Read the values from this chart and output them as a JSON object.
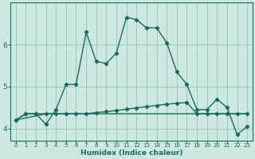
{
  "xlabel": "Humidex (Indice chaleur)",
  "bg_color": "#cce8e0",
  "grid_color": "#99ccbb",
  "line_color": "#1a6b5a",
  "xlim": [
    -0.5,
    23.5
  ],
  "ylim": [
    3.7,
    7.0
  ],
  "yticks": [
    4,
    5,
    6
  ],
  "xticks": [
    0,
    1,
    2,
    3,
    4,
    5,
    6,
    7,
    8,
    9,
    10,
    11,
    12,
    13,
    14,
    15,
    16,
    17,
    18,
    19,
    20,
    21,
    22,
    23
  ],
  "series1_x": [
    0,
    1,
    2,
    3,
    4,
    5,
    6,
    7,
    8,
    9,
    10,
    11,
    12,
    13,
    14,
    15,
    16,
    17,
    18,
    19,
    20,
    21,
    22,
    23
  ],
  "series1_y": [
    4.2,
    4.35,
    4.35,
    4.1,
    4.45,
    5.05,
    5.05,
    6.3,
    5.6,
    5.55,
    5.8,
    6.65,
    6.6,
    6.4,
    6.4,
    6.05,
    5.35,
    5.05,
    4.45,
    4.45,
    4.7,
    4.5,
    3.85,
    4.05
  ],
  "series2_x": [
    0,
    1,
    2,
    3,
    4,
    5,
    6,
    7,
    8,
    9,
    10,
    11,
    12,
    13,
    14,
    15,
    16,
    17,
    18,
    19,
    20,
    21,
    22,
    23
  ],
  "series2_y": [
    4.2,
    4.35,
    4.35,
    4.35,
    4.35,
    4.35,
    4.35,
    4.35,
    4.38,
    4.4,
    4.43,
    4.46,
    4.49,
    4.52,
    4.55,
    4.58,
    4.6,
    4.62,
    4.35,
    4.35,
    4.35,
    4.35,
    4.35,
    4.35
  ],
  "series3_x": [
    0,
    3,
    19,
    23
  ],
  "series3_y": [
    4.2,
    4.35,
    4.35,
    4.35
  ]
}
